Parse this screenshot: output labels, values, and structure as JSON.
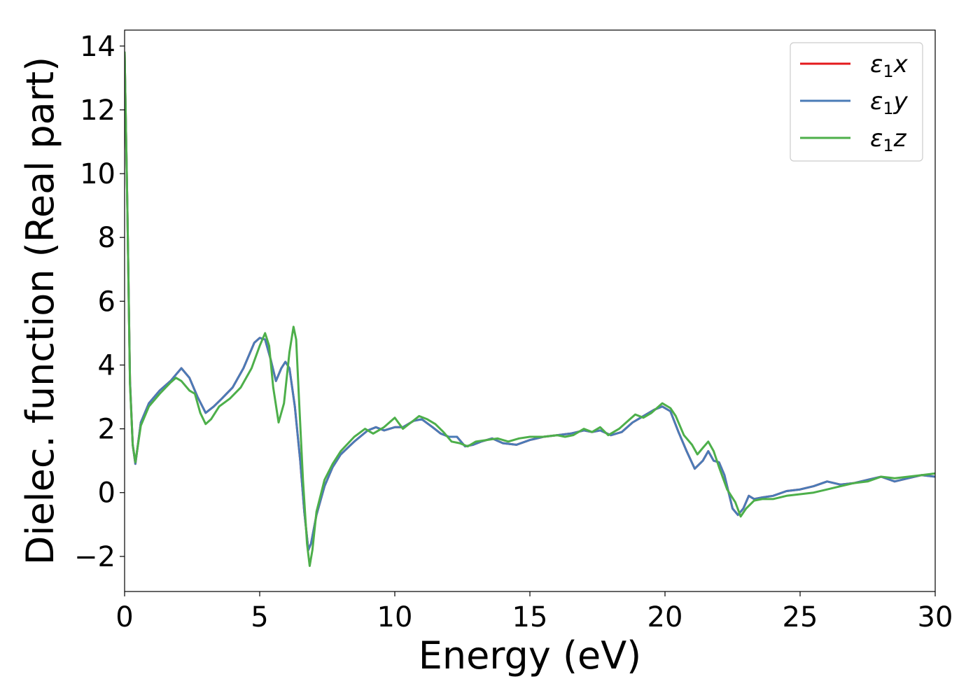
{
  "chart_data": {
    "type": "line",
    "title": "",
    "xlabel": "Energy (eV)",
    "ylabel": "Dielec. function (Real part)",
    "xlim": [
      0,
      30
    ],
    "ylim": [
      -3.1,
      14.5
    ],
    "xticks": [
      0,
      5,
      10,
      15,
      20,
      25,
      30
    ],
    "xtick_labels": [
      "0",
      "5",
      "10",
      "15",
      "20",
      "25",
      "30"
    ],
    "yticks": [
      -2,
      0,
      2,
      4,
      6,
      8,
      10,
      12,
      14
    ],
    "ytick_labels": [
      "−2",
      "0",
      "2",
      "4",
      "6",
      "8",
      "10",
      "12",
      "14"
    ],
    "grid": false,
    "legend_position": "top-right",
    "series": [
      {
        "name": "ε₁x",
        "legend_base": "ε",
        "legend_sub": "1",
        "legend_suffix": "x",
        "color": "#e41a1c",
        "x": [
          0,
          0.1,
          0.2,
          0.3,
          0.4,
          0.6,
          0.9,
          1.3,
          1.7,
          2.1,
          2.4,
          2.7,
          3.0,
          3.3,
          3.6,
          4.0,
          4.4,
          4.8,
          5.0,
          5.2,
          5.4,
          5.6,
          5.8,
          5.95,
          6.1,
          6.3,
          6.5,
          6.65,
          6.8,
          6.9,
          7.1,
          7.4,
          7.7,
          8.0,
          8.5,
          9.0,
          9.3,
          9.6,
          10.0,
          10.3,
          10.7,
          11.0,
          11.4,
          11.7,
          12.0,
          12.3,
          12.6,
          12.9,
          13.2,
          13.6,
          14.0,
          14.5,
          15.0,
          15.5,
          16.0,
          16.5,
          17.0,
          17.3,
          17.6,
          18.0,
          18.4,
          18.8,
          19.2,
          19.6,
          19.9,
          20.2,
          20.5,
          20.8,
          21.1,
          21.4,
          21.6,
          21.8,
          22.0,
          22.2,
          22.5,
          22.7,
          22.9,
          23.1,
          23.3,
          23.6,
          24.0,
          24.5,
          25.0,
          25.5,
          26.0,
          26.5,
          27.0,
          27.5,
          28.0,
          28.5,
          29.0,
          29.5,
          30.0
        ],
        "y": [
          13.8,
          9.0,
          3.5,
          1.5,
          0.9,
          2.2,
          2.8,
          3.2,
          3.5,
          3.9,
          3.6,
          3.0,
          2.5,
          2.7,
          2.95,
          3.3,
          3.9,
          4.7,
          4.85,
          4.8,
          4.2,
          3.5,
          3.9,
          4.1,
          3.9,
          2.7,
          1.0,
          -0.6,
          -1.8,
          -1.6,
          -0.7,
          0.2,
          0.8,
          1.2,
          1.6,
          1.95,
          2.05,
          1.95,
          2.05,
          2.05,
          2.25,
          2.3,
          2.05,
          1.85,
          1.75,
          1.75,
          1.45,
          1.5,
          1.6,
          1.7,
          1.55,
          1.5,
          1.65,
          1.75,
          1.8,
          1.85,
          1.95,
          1.9,
          1.95,
          1.8,
          1.9,
          2.2,
          2.4,
          2.6,
          2.7,
          2.55,
          1.9,
          1.3,
          0.75,
          1.0,
          1.3,
          1.0,
          0.95,
          0.55,
          -0.5,
          -0.7,
          -0.5,
          -0.1,
          -0.2,
          -0.15,
          -0.1,
          0.05,
          0.1,
          0.2,
          0.35,
          0.25,
          0.3,
          0.4,
          0.5,
          0.35,
          0.45,
          0.55,
          0.5
        ]
      },
      {
        "name": "ε₁y",
        "legend_base": "ε",
        "legend_sub": "1",
        "legend_suffix": "y",
        "color": "#4a7bb7",
        "x": [
          0,
          0.1,
          0.2,
          0.3,
          0.4,
          0.6,
          0.9,
          1.3,
          1.7,
          2.1,
          2.4,
          2.7,
          3.0,
          3.3,
          3.6,
          4.0,
          4.4,
          4.8,
          5.0,
          5.2,
          5.4,
          5.6,
          5.8,
          5.95,
          6.1,
          6.3,
          6.5,
          6.65,
          6.8,
          6.9,
          7.1,
          7.4,
          7.7,
          8.0,
          8.5,
          9.0,
          9.3,
          9.6,
          10.0,
          10.3,
          10.7,
          11.0,
          11.4,
          11.7,
          12.0,
          12.3,
          12.6,
          12.9,
          13.2,
          13.6,
          14.0,
          14.5,
          15.0,
          15.5,
          16.0,
          16.5,
          17.0,
          17.3,
          17.6,
          18.0,
          18.4,
          18.8,
          19.2,
          19.6,
          19.9,
          20.2,
          20.5,
          20.8,
          21.1,
          21.4,
          21.6,
          21.8,
          22.0,
          22.2,
          22.5,
          22.7,
          22.9,
          23.1,
          23.3,
          23.6,
          24.0,
          24.5,
          25.0,
          25.5,
          26.0,
          26.5,
          27.0,
          27.5,
          28.0,
          28.5,
          29.0,
          29.5,
          30.0
        ],
        "y": [
          13.8,
          9.0,
          3.5,
          1.5,
          0.9,
          2.2,
          2.8,
          3.2,
          3.5,
          3.9,
          3.6,
          3.0,
          2.5,
          2.7,
          2.95,
          3.3,
          3.9,
          4.7,
          4.85,
          4.8,
          4.2,
          3.5,
          3.9,
          4.1,
          3.9,
          2.7,
          1.0,
          -0.6,
          -1.8,
          -1.6,
          -0.7,
          0.2,
          0.8,
          1.2,
          1.6,
          1.95,
          2.05,
          1.95,
          2.05,
          2.05,
          2.25,
          2.3,
          2.05,
          1.85,
          1.75,
          1.75,
          1.45,
          1.5,
          1.6,
          1.7,
          1.55,
          1.5,
          1.65,
          1.75,
          1.8,
          1.85,
          1.95,
          1.9,
          1.95,
          1.8,
          1.9,
          2.2,
          2.4,
          2.6,
          2.7,
          2.55,
          1.9,
          1.3,
          0.75,
          1.0,
          1.3,
          1.0,
          0.95,
          0.55,
          -0.5,
          -0.7,
          -0.5,
          -0.1,
          -0.2,
          -0.15,
          -0.1,
          0.05,
          0.1,
          0.2,
          0.35,
          0.25,
          0.3,
          0.4,
          0.5,
          0.35,
          0.45,
          0.55,
          0.5
        ]
      },
      {
        "name": "ε₁z",
        "legend_base": "ε",
        "legend_sub": "1",
        "legend_suffix": "z",
        "color": "#4daf4a",
        "x": [
          0,
          0.1,
          0.2,
          0.3,
          0.4,
          0.6,
          0.9,
          1.3,
          1.7,
          1.9,
          2.1,
          2.4,
          2.6,
          2.8,
          3.0,
          3.2,
          3.5,
          3.9,
          4.3,
          4.7,
          5.0,
          5.2,
          5.35,
          5.5,
          5.7,
          5.9,
          6.1,
          6.25,
          6.35,
          6.45,
          6.6,
          6.75,
          6.85,
          6.95,
          7.1,
          7.4,
          7.7,
          8.0,
          8.5,
          8.9,
          9.2,
          9.6,
          10.0,
          10.3,
          10.6,
          10.9,
          11.2,
          11.5,
          11.8,
          12.1,
          12.4,
          12.7,
          13.0,
          13.4,
          13.8,
          14.2,
          14.6,
          15.0,
          15.5,
          16.0,
          16.3,
          16.6,
          17.0,
          17.3,
          17.6,
          17.9,
          18.3,
          18.7,
          18.9,
          19.2,
          19.5,
          19.9,
          20.2,
          20.4,
          20.7,
          21.0,
          21.2,
          21.4,
          21.6,
          21.8,
          22.0,
          22.3,
          22.6,
          22.8,
          23.0,
          23.3,
          23.6,
          24.0,
          24.5,
          25.0,
          25.5,
          26.0,
          26.5,
          27.0,
          27.5,
          28.0,
          28.5,
          29.0,
          29.5,
          30.0
        ],
        "y": [
          13.8,
          9.0,
          3.4,
          1.5,
          0.95,
          2.1,
          2.7,
          3.1,
          3.45,
          3.6,
          3.5,
          3.2,
          3.1,
          2.5,
          2.15,
          2.3,
          2.7,
          2.95,
          3.3,
          3.9,
          4.6,
          5.0,
          4.6,
          3.3,
          2.2,
          2.8,
          4.4,
          5.2,
          4.8,
          3.0,
          0.4,
          -1.6,
          -2.3,
          -1.8,
          -0.6,
          0.4,
          0.9,
          1.3,
          1.75,
          2.0,
          1.85,
          2.05,
          2.35,
          2.0,
          2.2,
          2.4,
          2.3,
          2.15,
          1.9,
          1.6,
          1.55,
          1.45,
          1.6,
          1.65,
          1.7,
          1.6,
          1.7,
          1.75,
          1.75,
          1.8,
          1.75,
          1.8,
          2.0,
          1.9,
          2.05,
          1.8,
          2.0,
          2.3,
          2.45,
          2.35,
          2.5,
          2.8,
          2.65,
          2.4,
          1.8,
          1.5,
          1.2,
          1.4,
          1.6,
          1.3,
          0.8,
          0.1,
          -0.3,
          -0.75,
          -0.5,
          -0.25,
          -0.2,
          -0.2,
          -0.1,
          -0.05,
          0.0,
          0.1,
          0.2,
          0.3,
          0.35,
          0.5,
          0.45,
          0.5,
          0.55,
          0.6
        ]
      }
    ]
  }
}
